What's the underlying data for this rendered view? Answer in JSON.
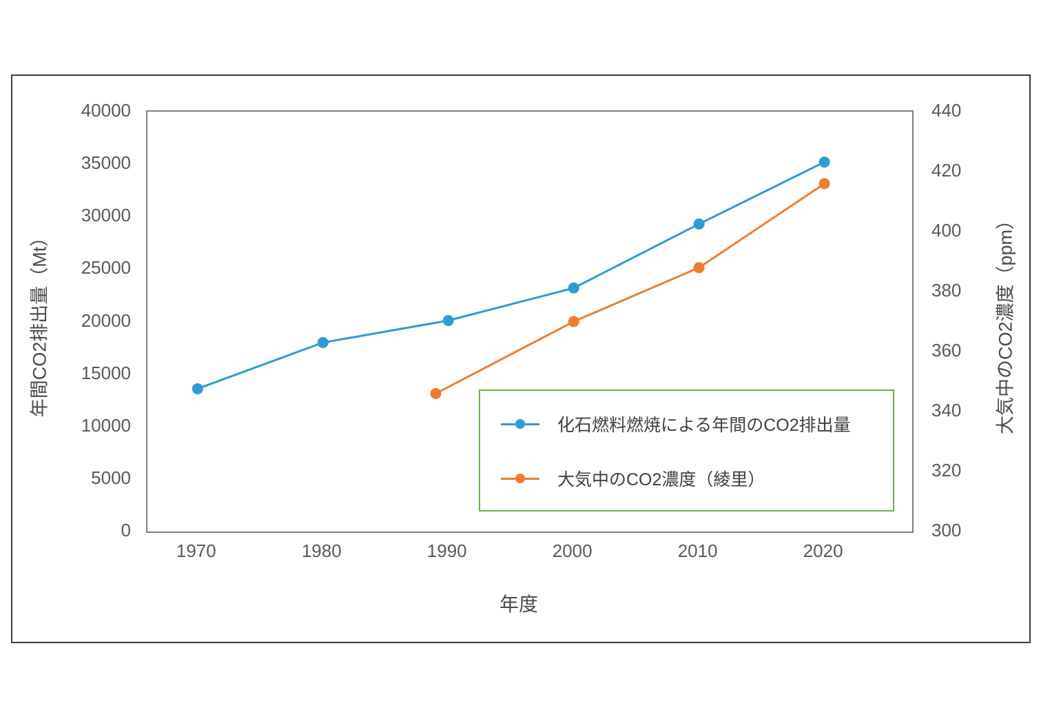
{
  "chart_data": {
    "type": "line",
    "title": "",
    "grid": false,
    "x_axis": {
      "label": "年度",
      "ticks": [
        1970,
        1980,
        1990,
        2000,
        2010,
        2020
      ],
      "range": [
        1966,
        2027
      ]
    },
    "left_axis": {
      "label": "年間CO2排出量（Mt）",
      "ticks": [
        0,
        5000,
        10000,
        15000,
        20000,
        25000,
        30000,
        35000,
        40000
      ],
      "range": [
        0,
        40000
      ]
    },
    "right_axis": {
      "label": "大気中のCO2濃度（ppm）",
      "ticks": [
        300,
        320,
        340,
        360,
        380,
        400,
        420,
        440
      ],
      "range": [
        300,
        440
      ]
    },
    "series": [
      {
        "name": "化石燃料燃焼による年間のCO2排出量",
        "axis": "left",
        "color": "#2e9bd5",
        "x": [
          1970,
          1980,
          1990,
          2000,
          2010,
          2020
        ],
        "y": [
          13600,
          18000,
          20100,
          23200,
          29300,
          35200
        ]
      },
      {
        "name": "大気中のCO2濃度（綾里）",
        "axis": "right",
        "color": "#ed7d31",
        "x": [
          1989,
          2000,
          2010,
          2020
        ],
        "y": [
          346,
          370,
          388,
          416
        ]
      }
    ],
    "legend": {
      "position": "inside-bottom-right",
      "border_color": "#70ad47",
      "entries": [
        "化石燃料燃焼による年間のCO2排出量",
        "大気中のCO2濃度（綾里）"
      ]
    },
    "colors": {
      "axis_line": "#7f7f7f",
      "outer_border": "#3a3a3a",
      "tick_text": "#595959",
      "title_text": "#4a4a4a"
    }
  }
}
